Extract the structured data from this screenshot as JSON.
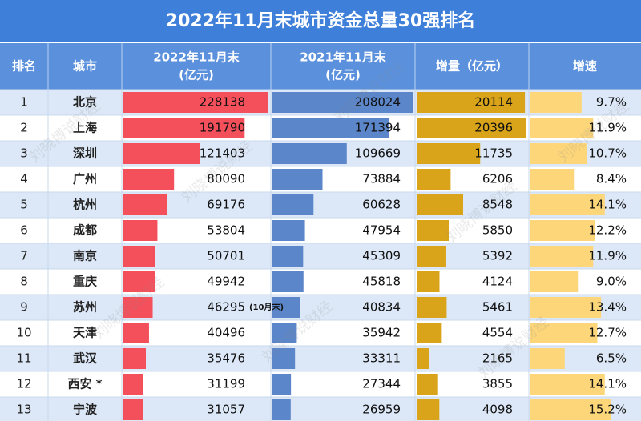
{
  "header": {
    "title": "2022年11月末城市资金总量30强排名"
  },
  "table": {
    "columns": [
      [
        "排名"
      ],
      [
        "城市"
      ],
      [
        "2022年11月末",
        "(亿元)"
      ],
      [
        "2021年11月末",
        "(亿元)"
      ],
      [
        "增量（亿元）"
      ],
      [
        "增速"
      ]
    ],
    "rows": [
      [
        1,
        "北京",
        228138,
        208024,
        20114,
        "9.7%"
      ],
      [
        2,
        "上海",
        191790,
        171394,
        20396,
        "11.9%"
      ],
      [
        3,
        "深圳",
        121403,
        109669,
        11735,
        "10.7%"
      ],
      [
        4,
        "广州",
        80090,
        73884,
        6206,
        "8.4%"
      ],
      [
        5,
        "杭州",
        69176,
        60628,
        8548,
        "14.1%"
      ],
      [
        6,
        "成都",
        53804,
        47954,
        5850,
        "12.2%"
      ],
      [
        7,
        "南京",
        50701,
        45309,
        5392,
        "11.9%"
      ],
      [
        8,
        "重庆",
        49942,
        45818,
        4124,
        "9.0%"
      ],
      [
        9,
        "苏州",
        46295,
        40834,
        5461,
        "13.4%"
      ],
      [
        10,
        "天津",
        40496,
        35942,
        4554,
        "12.7%"
      ],
      [
        11,
        "武汉",
        35476,
        33311,
        2165,
        "6.5%"
      ],
      [
        12,
        "西安 *",
        31199,
        27344,
        3855,
        "14.1%"
      ],
      [
        13,
        "宁波",
        31057,
        26959,
        4098,
        "15.2%"
      ]
    ],
    "notes": {
      "8": "(10月末)"
    }
  },
  "watermark": "刘晓博说财经"
}
